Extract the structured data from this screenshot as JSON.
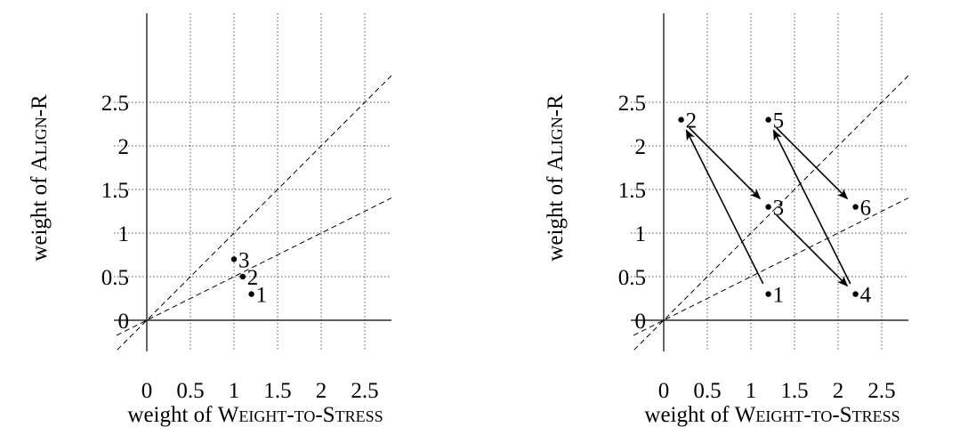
{
  "chart_data": [
    {
      "type": "scatter",
      "xlabel": "weight of WEIGHT-TO-STRESS",
      "xlabel_parts": {
        "prefix": "weight of ",
        "smallcaps": "Weight-to-Stress"
      },
      "ylabel": "weight of ALIGN-R",
      "ylabel_parts": {
        "prefix": "weight of ",
        "smallcaps": "Align",
        "suffix": "-R"
      },
      "xlim": [
        -0.35,
        2.8
      ],
      "ylim": [
        -0.35,
        2.8
      ],
      "xticks": [
        0,
        0.5,
        1,
        1.5,
        2,
        2.5
      ],
      "xtick_labels": [
        "0",
        "0.5",
        "1",
        "1.5",
        "2",
        "2.5"
      ],
      "yticks": [
        0,
        0.5,
        1,
        1.5,
        2,
        2.5
      ],
      "ytick_labels": [
        "0",
        "0.5",
        "1",
        "1.5",
        "2",
        "2.5"
      ],
      "grid": true,
      "reference_lines": [
        {
          "slope": 1
        },
        {
          "slope": 0.5
        }
      ],
      "points": [
        {
          "label": "1",
          "x": 1.2,
          "y": 0.3
        },
        {
          "label": "2",
          "x": 1.1,
          "y": 0.5
        },
        {
          "label": "3",
          "x": 1.0,
          "y": 0.7
        }
      ],
      "arrows": []
    },
    {
      "type": "scatter",
      "xlabel": "weight of WEIGHT-TO-STRESS",
      "xlabel_parts": {
        "prefix": "weight of ",
        "smallcaps": "Weight-to-Stress"
      },
      "ylabel": "weight of ALIGN-R",
      "ylabel_parts": {
        "prefix": "weight of ",
        "smallcaps": "Align",
        "suffix": "-R"
      },
      "xlim": [
        -0.35,
        2.8
      ],
      "ylim": [
        -0.35,
        2.8
      ],
      "xticks": [
        0,
        0.5,
        1,
        1.5,
        2,
        2.5
      ],
      "xtick_labels": [
        "0",
        "0.5",
        "1",
        "1.5",
        "2",
        "2.5"
      ],
      "yticks": [
        0,
        0.5,
        1,
        1.5,
        2,
        2.5
      ],
      "ytick_labels": [
        "0",
        "0.5",
        "1",
        "1.5",
        "2",
        "2.5"
      ],
      "grid": true,
      "reference_lines": [
        {
          "slope": 1
        },
        {
          "slope": 0.5
        }
      ],
      "points": [
        {
          "label": "1",
          "x": 1.2,
          "y": 0.3
        },
        {
          "label": "2",
          "x": 0.2,
          "y": 2.3
        },
        {
          "label": "3",
          "x": 1.2,
          "y": 1.3
        },
        {
          "label": "4",
          "x": 2.2,
          "y": 0.3
        },
        {
          "label": "5",
          "x": 1.2,
          "y": 2.3
        },
        {
          "label": "6",
          "x": 2.2,
          "y": 1.3
        }
      ],
      "arrows": [
        {
          "from": "1",
          "to": "2"
        },
        {
          "from": "2",
          "to": "3"
        },
        {
          "from": "3",
          "to": "4"
        },
        {
          "from": "4",
          "to": "5"
        },
        {
          "from": "5",
          "to": "6"
        }
      ]
    }
  ]
}
